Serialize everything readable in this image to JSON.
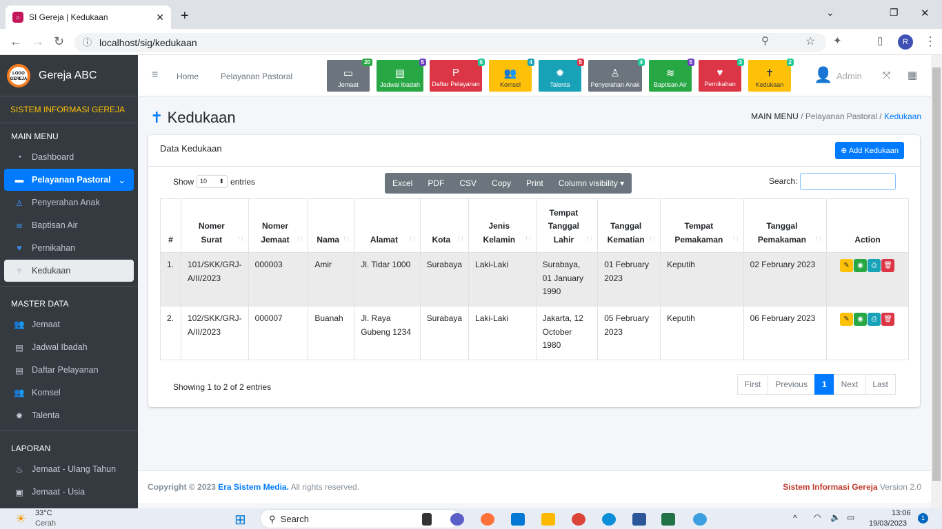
{
  "browser": {
    "tab_title": "SI Gereja | Kedukaan",
    "url": "localhost/sig/kedukaan",
    "profile": "R"
  },
  "sidebar": {
    "brand": "Gereja ABC",
    "logo_text": "LOGO GEREJA",
    "system_name": "SISTEM INFORMASI GEREJA",
    "sections": [
      {
        "header": "MAIN MENU",
        "items": [
          {
            "label": "Dashboard",
            "icon": "tachometer-icon",
            "glyph": "◔",
            "state": ""
          },
          {
            "label": "Pelayanan Pastoral",
            "icon": "folder-icon",
            "glyph": "▬",
            "state": "act"
          },
          {
            "label": "Penyerahan Anak",
            "icon": "child-icon",
            "glyph": "♙",
            "state": "sub"
          },
          {
            "label": "Baptisan Air",
            "icon": "water-icon",
            "glyph": "≋",
            "state": "sub"
          },
          {
            "label": "Pernikahan",
            "icon": "heart-icon",
            "glyph": "♥",
            "state": "sub"
          },
          {
            "label": "Kedukaan",
            "icon": "cross-icon",
            "glyph": "✝",
            "state": "sel"
          }
        ]
      },
      {
        "header": "MASTER DATA",
        "items": [
          {
            "label": "Jemaat",
            "icon": "users-icon",
            "glyph": "👥",
            "state": ""
          },
          {
            "label": "Jadwal Ibadah",
            "icon": "file-icon",
            "glyph": "▤",
            "state": ""
          },
          {
            "label": "Daftar Pelayanan",
            "icon": "file-p-icon",
            "glyph": "▤",
            "state": ""
          },
          {
            "label": "Komsel",
            "icon": "users-icon",
            "glyph": "👥",
            "state": ""
          },
          {
            "label": "Talenta",
            "icon": "cog-icon",
            "glyph": "✹",
            "state": ""
          }
        ]
      },
      {
        "header": "LAPORAN",
        "items": [
          {
            "label": "Jemaat - Ulang Tahun",
            "icon": "birthday-icon",
            "glyph": "♨",
            "state": ""
          },
          {
            "label": "Jemaat - Usia",
            "icon": "id-icon",
            "glyph": "▣",
            "state": ""
          }
        ]
      }
    ]
  },
  "topnav": {
    "links": [
      "Home",
      "Pelayanan Pastoral"
    ],
    "user": "Admin",
    "quick": [
      {
        "label": "Jemaat",
        "count": "20",
        "bg": "#6c757d",
        "badge": "#28a745",
        "fg": "#fff",
        "glyph": "▭",
        "icon": "id-card-icon"
      },
      {
        "label": "Jadwal Ibadah",
        "count": "5",
        "bg": "#28a745",
        "badge": "#6f42c1",
        "fg": "#fff",
        "glyph": "▤",
        "icon": "file-icon"
      },
      {
        "label": "Daftar Pelayanan",
        "count": "6",
        "bg": "#dc3545",
        "badge": "#20c997",
        "fg": "#fff",
        "glyph": "P",
        "icon": "file-p-icon"
      },
      {
        "label": "Komsel",
        "count": "4",
        "bg": "#ffc107",
        "badge": "#17a2b8",
        "fg": "#343a40",
        "glyph": "👥",
        "icon": "users-icon"
      },
      {
        "label": "Talenta",
        "count": "5",
        "bg": "#17a2b8",
        "badge": "#dc3545",
        "fg": "#fff",
        "glyph": "✹",
        "icon": "cog-icon"
      },
      {
        "label": "Penyerahan Anak",
        "count": "4",
        "bg": "#6c757d",
        "badge": "#20c997",
        "fg": "#fff",
        "glyph": "♙",
        "icon": "child-icon"
      },
      {
        "label": "Baptisan Air",
        "count": "5",
        "bg": "#28a745",
        "badge": "#6f42c1",
        "fg": "#fff",
        "glyph": "≋",
        "icon": "water-icon"
      },
      {
        "label": "Pernikahan",
        "count": "3",
        "bg": "#dc3545",
        "badge": "#20c997",
        "fg": "#fff",
        "glyph": "♥",
        "icon": "heart-icon"
      },
      {
        "label": "Kedukaan",
        "count": "2",
        "bg": "#ffc107",
        "badge": "#20c997",
        "fg": "#343a40",
        "glyph": "✝",
        "icon": "cross-icon"
      }
    ]
  },
  "page": {
    "title": "Kedukaan",
    "breadcrumb": [
      "MAIN MENU",
      "Pelayanan Pastoral",
      "Kedukaan"
    ]
  },
  "card": {
    "title": "Data Kedukaan",
    "add_label": "Add Kedukaan",
    "show_label": "Show",
    "entries_value": "10",
    "entries_label": "entries",
    "export_buttons": [
      "Excel",
      "PDF",
      "CSV",
      "Copy",
      "Print",
      "Column visibility ▾"
    ],
    "search_label": "Search:",
    "search_value": "",
    "columns": [
      "#",
      "Nomer Surat",
      "Nomer Jemaat",
      "Nama",
      "Alamat",
      "Kota",
      "Jenis Kelamin",
      "Tempat Tanggal Lahir",
      "Tanggal Kematian",
      "Tempat Pemakaman",
      "Tanggal Pemakaman",
      "Action"
    ],
    "rows": [
      [
        "1.",
        "101/SKK/GRJ-A/II/2023",
        "000003",
        "Amir",
        "Jl. Tidar 1000",
        "Surabaya",
        "Laki-Laki",
        "Surabaya, 01 January 1990",
        "01 February 2023",
        "Keputih",
        "02 February 2023"
      ],
      [
        "2.",
        "102/SKK/GRJ-A/II/2023",
        "000007",
        "Buanah",
        "Jl. Raya Gubeng 1234",
        "Surabaya",
        "Laki-Laki",
        "Jakarta, 12 October 1980",
        "05 February 2023",
        "Keputih",
        "06 February 2023"
      ]
    ],
    "info": "Showing 1 to 2 of 2 entries",
    "pagination": [
      "First",
      "Previous",
      "1",
      "Next",
      "Last"
    ],
    "current_page": "1"
  },
  "footer": {
    "copyright": "Copyright © 2023 ",
    "company": "Era Sistem Media.",
    "rights": " All rights reserved.",
    "app": "Sistem Informasi Gereja",
    "version": " Version 2.0"
  },
  "taskbar": {
    "temp": "33°C",
    "weather": "Cerah",
    "search": "Search",
    "time": "13:06",
    "date": "19/03/2023",
    "notif": "1"
  }
}
